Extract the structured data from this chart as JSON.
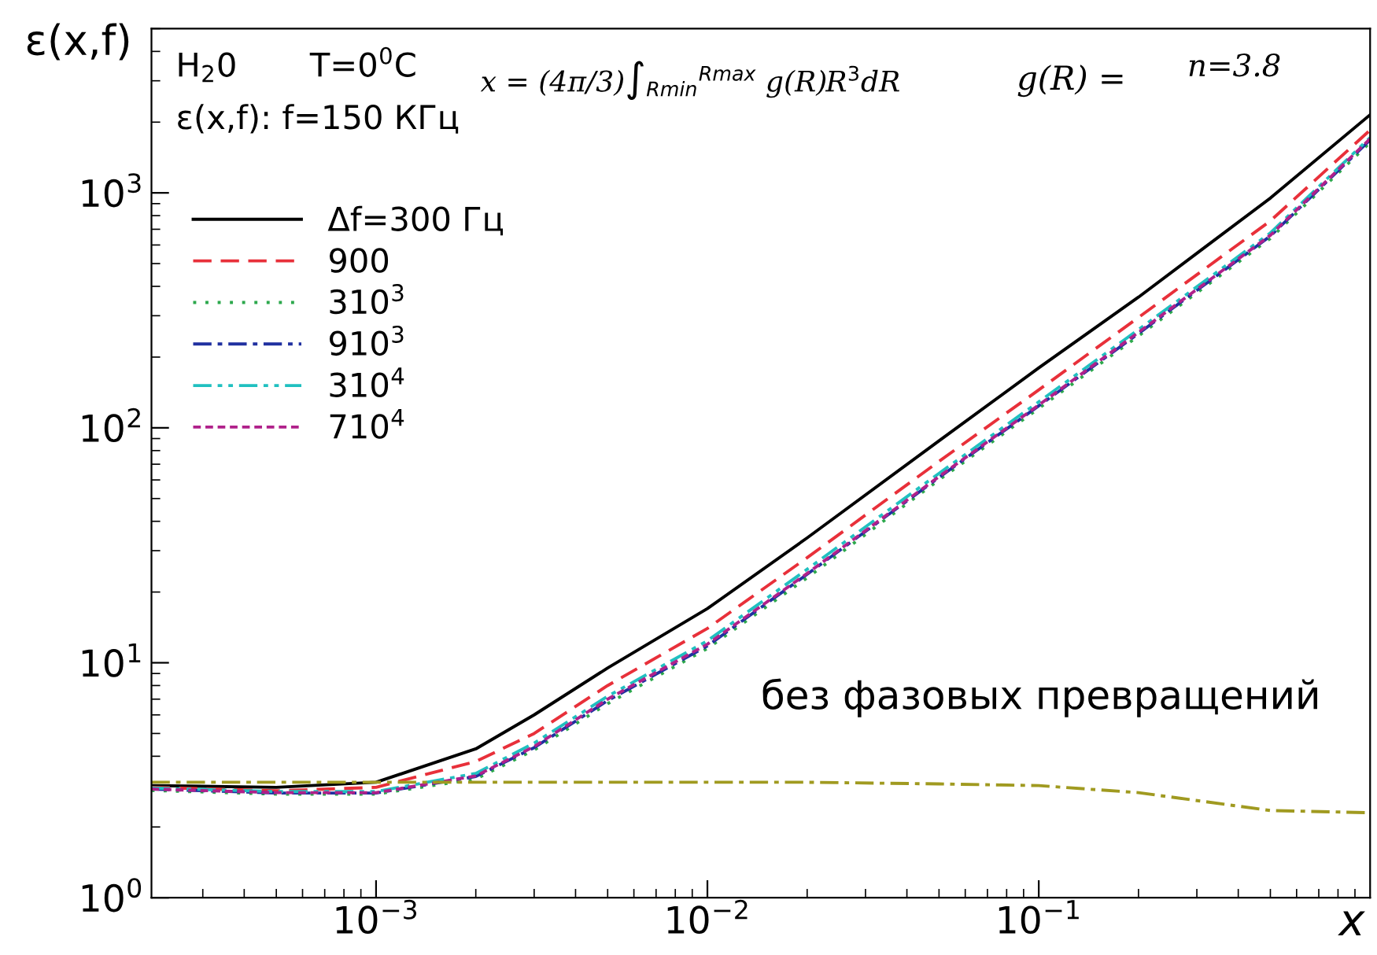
{
  "chart_data": {
    "type": "line",
    "xlabel": "x",
    "ylabel": "ε(x,f)",
    "log": "xy",
    "grid": false,
    "legend": "top left",
    "marker": "none",
    "xlim": [
      0.00021,
      1.0
    ],
    "ylim": [
      1,
      5000
    ],
    "xticks": [
      {
        "value": 0.001,
        "label": "10$^{−3}$"
      },
      {
        "value": 0.01,
        "label": "10$^{−2}$"
      },
      {
        "value": 0.1,
        "label": "10$^{−1}$"
      }
    ],
    "yticks": [
      {
        "value": 1,
        "label": "10$^{0}$"
      },
      {
        "value": 10,
        "label": "10$^{1}$"
      },
      {
        "value": 100,
        "label": "10$^{2}$"
      },
      {
        "value": 1000,
        "label": "10$^{3}$"
      }
    ],
    "x": [
      0.00021,
      0.0005,
      0.001,
      0.002,
      0.003,
      0.005,
      0.01,
      0.02,
      0.05,
      0.1,
      0.2,
      0.5,
      1.0
    ],
    "series": [
      {
        "name": "Δf=300 Гц",
        "color": "#000000",
        "line_style": "solid",
        "values": [
          3.0,
          2.95,
          3.1,
          4.3,
          6.0,
          9.5,
          17,
          34,
          88,
          180,
          360,
          950,
          2150
        ]
      },
      {
        "name": "900",
        "color": "#e8303a",
        "line_style": "dashed",
        "values": [
          2.95,
          2.85,
          2.95,
          3.8,
          5.0,
          8.0,
          14,
          28,
          72,
          145,
          295,
          760,
          1850
        ]
      },
      {
        "name": "310$^{3}$",
        "color": "#2ca84c",
        "line_style": "dotted",
        "values": [
          2.86,
          2.76,
          2.76,
          3.2,
          4.25,
          6.7,
          11.5,
          23,
          60,
          121,
          246,
          640,
          1640
        ]
      },
      {
        "name": "910$^{3}$",
        "color": "#2030a0",
        "line_style": "dashdot",
        "values": [
          2.9,
          2.79,
          2.79,
          3.28,
          4.35,
          6.9,
          11.8,
          23.8,
          61.5,
          124,
          252,
          655,
          1680
        ]
      },
      {
        "name": "310$^{4}$",
        "color": "#20c0c0",
        "line_style": "dashdotdot",
        "values": [
          2.93,
          2.83,
          2.83,
          3.38,
          4.55,
          7.2,
          12.4,
          25,
          64,
          129,
          262,
          675,
          1720
        ]
      },
      {
        "name": "710$^{4}$",
        "color": "#b0208a",
        "line_style": "shortdash",
        "values": [
          2.9,
          2.8,
          2.8,
          3.3,
          4.4,
          7.0,
          12,
          24,
          62,
          125,
          255,
          660,
          1700
        ]
      },
      {
        "color": "#a09a20",
        "line_style": "dashdot",
        "values": [
          3.1,
          3.1,
          3.1,
          3.1,
          3.1,
          3.1,
          3.1,
          3.1,
          3.05,
          3.0,
          2.8,
          2.35,
          2.3
        ]
      }
    ],
    "annotations": [
      "H$_{2}$0",
      "T=0$^{0}$C",
      "ε(x,f): f=150 КГц",
      "x = (4π/3)∫$_{Rmin}$$^{Rmax}$ g(R)R$^{3}$dR",
      "g(R) =",
      "n=3.8",
      "без фазовых превращений"
    ]
  }
}
